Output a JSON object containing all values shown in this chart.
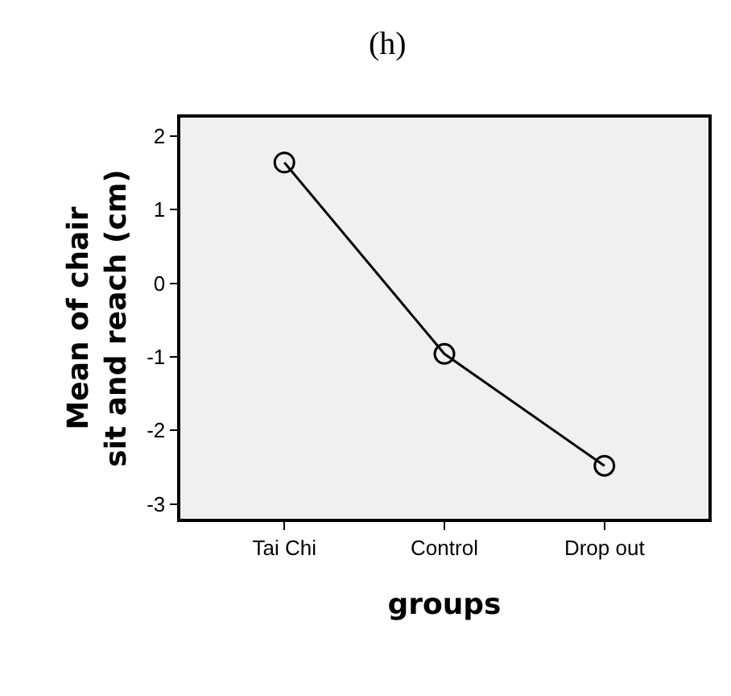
{
  "chart_data": {
    "type": "line",
    "title": "(h)",
    "xlabel": "groups",
    "ylabel": "Mean of chair sit and reach (cm)",
    "categories": [
      "Tai Chi",
      "Control",
      "Drop out"
    ],
    "series": [
      {
        "color": "#000000",
        "values": [
          1.64,
          -0.96,
          -2.48
        ]
      }
    ],
    "ylim": [
      -3.2,
      2.25
    ],
    "yticks": [
      -3,
      -2,
      -1,
      0,
      1,
      2
    ],
    "grid": false,
    "marker": "circle",
    "line_style": "solid"
  }
}
